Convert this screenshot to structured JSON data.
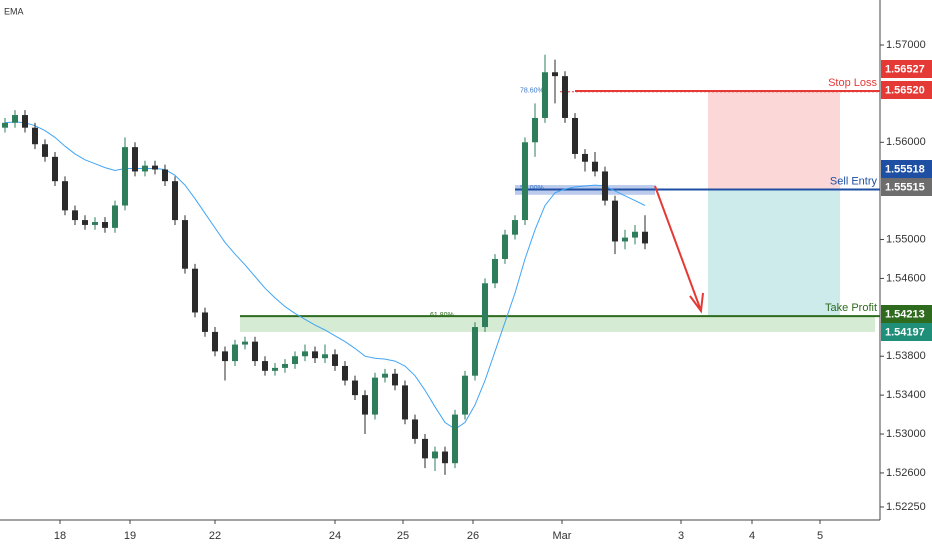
{
  "chart_data": {
    "type": "candlestick",
    "candles": {
      "up_color": "#2e7d5b",
      "down_color": "#2b2b2b",
      "open": [
        1.5615,
        1.562,
        1.5628,
        1.5615,
        1.5598,
        1.5585,
        1.556,
        1.553,
        1.552,
        1.5515,
        1.5518,
        1.5512,
        1.5535,
        1.5595,
        1.557,
        1.5576,
        1.5572,
        1.556,
        1.552,
        1.547,
        1.5425,
        1.5405,
        1.5385,
        1.5375,
        1.5392,
        1.5395,
        1.5375,
        1.5365,
        1.5368,
        1.5372,
        1.538,
        1.5385,
        1.5378,
        1.5382,
        1.537,
        1.5355,
        1.534,
        1.532,
        1.5358,
        1.5362,
        1.535,
        1.5315,
        1.5295,
        1.5275,
        1.5282,
        1.527,
        1.532,
        1.536,
        1.541,
        1.5455,
        1.548,
        1.5505,
        1.552,
        1.56,
        1.5625,
        1.5672,
        1.5668,
        1.5625,
        1.5588,
        1.558,
        1.557,
        1.554,
        1.5498,
        1.5502,
        1.5508
      ],
      "high": [
        1.5625,
        1.5633,
        1.5633,
        1.562,
        1.5603,
        1.559,
        1.5565,
        1.5535,
        1.5525,
        1.5523,
        1.5523,
        1.554,
        1.5605,
        1.56,
        1.5581,
        1.5581,
        1.5577,
        1.5565,
        1.5525,
        1.5475,
        1.543,
        1.541,
        1.539,
        1.5397,
        1.54,
        1.54,
        1.538,
        1.5373,
        1.5377,
        1.5385,
        1.5392,
        1.539,
        1.5392,
        1.5387,
        1.5375,
        1.536,
        1.5345,
        1.5363,
        1.5367,
        1.5367,
        1.5355,
        1.532,
        1.53,
        1.5287,
        1.5287,
        1.5325,
        1.5365,
        1.5415,
        1.546,
        1.5485,
        1.551,
        1.5525,
        1.5605,
        1.564,
        1.569,
        1.5685,
        1.5673,
        1.563,
        1.5593,
        1.559,
        1.5575,
        1.5545,
        1.551,
        1.5515,
        1.5525
      ],
      "low": [
        1.561,
        1.5615,
        1.561,
        1.5593,
        1.558,
        1.5555,
        1.5525,
        1.5515,
        1.551,
        1.551,
        1.5507,
        1.5507,
        1.553,
        1.5565,
        1.5565,
        1.5567,
        1.5555,
        1.5515,
        1.5465,
        1.542,
        1.54,
        1.538,
        1.5355,
        1.537,
        1.5387,
        1.537,
        1.536,
        1.536,
        1.5363,
        1.5367,
        1.5375,
        1.5373,
        1.5373,
        1.5365,
        1.535,
        1.5335,
        1.53,
        1.5315,
        1.5353,
        1.5345,
        1.531,
        1.529,
        1.5265,
        1.5262,
        1.5258,
        1.5265,
        1.5315,
        1.5355,
        1.5405,
        1.545,
        1.5475,
        1.55,
        1.5515,
        1.5585,
        1.562,
        1.564,
        1.562,
        1.5583,
        1.557,
        1.5565,
        1.5535,
        1.5485,
        1.549,
        1.5495,
        1.549
      ],
      "close": [
        1.562,
        1.5628,
        1.5615,
        1.5598,
        1.5585,
        1.556,
        1.553,
        1.552,
        1.5515,
        1.5518,
        1.5512,
        1.5535,
        1.5595,
        1.557,
        1.5576,
        1.5572,
        1.556,
        1.552,
        1.547,
        1.5425,
        1.5405,
        1.5385,
        1.5375,
        1.5392,
        1.5395,
        1.5375,
        1.5365,
        1.5368,
        1.5372,
        1.538,
        1.5385,
        1.5378,
        1.5382,
        1.537,
        1.5355,
        1.534,
        1.532,
        1.5358,
        1.5362,
        1.535,
        1.5315,
        1.5295,
        1.5275,
        1.5282,
        1.527,
        1.532,
        1.536,
        1.541,
        1.5455,
        1.548,
        1.5505,
        1.552,
        1.56,
        1.5625,
        1.5672,
        1.5668,
        1.5625,
        1.5588,
        1.558,
        1.557,
        1.554,
        1.5498,
        1.5502,
        1.5508,
        1.5496
      ]
    },
    "ema": {
      "name": "EMA",
      "color": "#42a5f5",
      "values": [
        1.562,
        1.5621,
        1.562,
        1.5617,
        1.5612,
        1.5605,
        1.5596,
        1.5588,
        1.5582,
        1.5578,
        1.5574,
        1.5571,
        1.5573,
        1.5573,
        1.5573,
        1.5573,
        1.5572,
        1.5566,
        1.5556,
        1.5542,
        1.5527,
        1.5512,
        1.5497,
        1.5485,
        1.5474,
        1.5462,
        1.545,
        1.544,
        1.5431,
        1.5424,
        1.5418,
        1.5412,
        1.5407,
        1.5401,
        1.5395,
        1.5388,
        1.538,
        1.5378,
        1.5377,
        1.5375,
        1.537,
        1.536,
        1.5345,
        1.5328,
        1.5312,
        1.5305,
        1.5312,
        1.533,
        1.5355,
        1.5385,
        1.5415,
        1.5445,
        1.548,
        1.551,
        1.5535,
        1.5548,
        1.5552,
        1.5554,
        1.5555,
        1.5556,
        1.5555,
        1.555,
        1.5545,
        1.554,
        1.5535
      ]
    },
    "xlim": [
      0,
      88
    ],
    "xticks": [
      {
        "value": 6,
        "label": "18"
      },
      {
        "value": 13,
        "label": "19"
      },
      {
        "value": 21.5,
        "label": "22"
      },
      {
        "value": 33.5,
        "label": "24"
      },
      {
        "value": 40.3,
        "label": "25"
      },
      {
        "value": 47.3,
        "label": "26"
      },
      {
        "value": 56.2,
        "label": "Mar"
      },
      {
        "value": 68.1,
        "label": "3"
      },
      {
        "value": 75.2,
        "label": "4"
      },
      {
        "value": 82,
        "label": "5"
      }
    ],
    "ylim": [
      1.52116,
      1.57463
    ],
    "yticks": [
      {
        "value": 1.57,
        "label": "1.57000"
      },
      {
        "value": 1.56,
        "label": "1.56000"
      },
      {
        "value": 1.55,
        "label": "1.55000"
      },
      {
        "value": 1.546,
        "label": "1.54600"
      },
      {
        "value": 1.538,
        "label": "1.53800"
      },
      {
        "value": 1.534,
        "label": "1.53400"
      },
      {
        "value": 1.53,
        "label": "1.53000"
      },
      {
        "value": 1.526,
        "label": "1.52600"
      },
      {
        "value": 1.5225,
        "label": "1.52250"
      }
    ],
    "levels": [
      {
        "name": "Stop Loss",
        "value": 1.56527,
        "color": "#e53935"
      },
      {
        "name": "Sell Entry",
        "value": 1.55515,
        "color": "#1e4fa3"
      },
      {
        "name": "Take Profit",
        "value": 1.54213,
        "color": "#2e6b1f"
      }
    ],
    "fib_levels": [
      {
        "label": "78.60%",
        "value": 1.5652
      },
      {
        "label": "50.00%",
        "value": 1.5552
      },
      {
        "label": "61.80%",
        "value": 1.54213
      }
    ],
    "zones": [
      {
        "from": 1.5556,
        "to": 1.5546,
        "color": "rgba(63,105,200,0.35)"
      },
      {
        "from": 1.54213,
        "to": 1.5405,
        "color": "rgba(120,190,110,0.3)"
      }
    ],
    "price_badges": [
      {
        "value": 1.56527,
        "label": "1.56527",
        "color": "#e53935"
      },
      {
        "value": 1.5652,
        "label": "1.56520",
        "color": "#e53935"
      },
      {
        "value": 1.55518,
        "label": "1.55518",
        "color": "#1e4fa3"
      },
      {
        "value": 1.55515,
        "label": "1.55515",
        "color": "#6d6d6d"
      },
      {
        "value": 1.54213,
        "label": "1.54213",
        "color": "#2e6b1f"
      },
      {
        "value": 1.54197,
        "label": "1.54197",
        "color": "#1f8f7a"
      }
    ]
  }
}
